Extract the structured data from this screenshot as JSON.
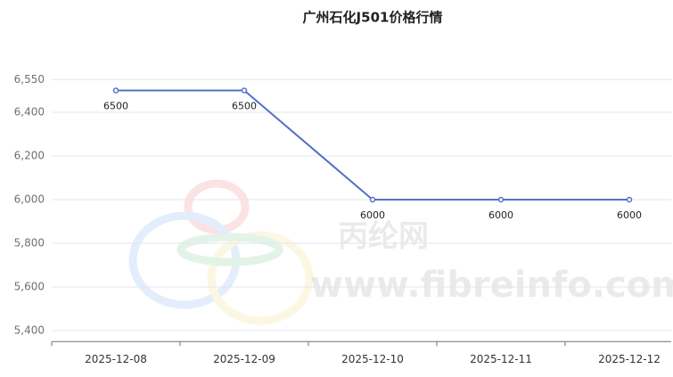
{
  "chart_data": {
    "type": "line",
    "title": "广州石化J501价格行情",
    "categories": [
      "2025-12-08",
      "2025-12-09",
      "2025-12-10",
      "2025-12-11",
      "2025-12-12"
    ],
    "series": [
      {
        "name": "广州石化J501",
        "color": "#5470c6",
        "values": [
          6500,
          6500,
          6000,
          6000,
          6000
        ]
      }
    ],
    "ylim": [
      5350,
      6550
    ],
    "yticks": [
      {
        "value": 5400,
        "label": "5,400"
      },
      {
        "value": 5600,
        "label": "5,600"
      },
      {
        "value": 5800,
        "label": "5,800"
      },
      {
        "value": 6000,
        "label": "6,000"
      },
      {
        "value": 6200,
        "label": "6,200"
      },
      {
        "value": 6400,
        "label": "6,400"
      },
      {
        "value": 6550,
        "label": "6,550"
      }
    ],
    "grid": true,
    "watermark": [
      "丙纶网",
      "www.fibreinfo.com"
    ]
  }
}
